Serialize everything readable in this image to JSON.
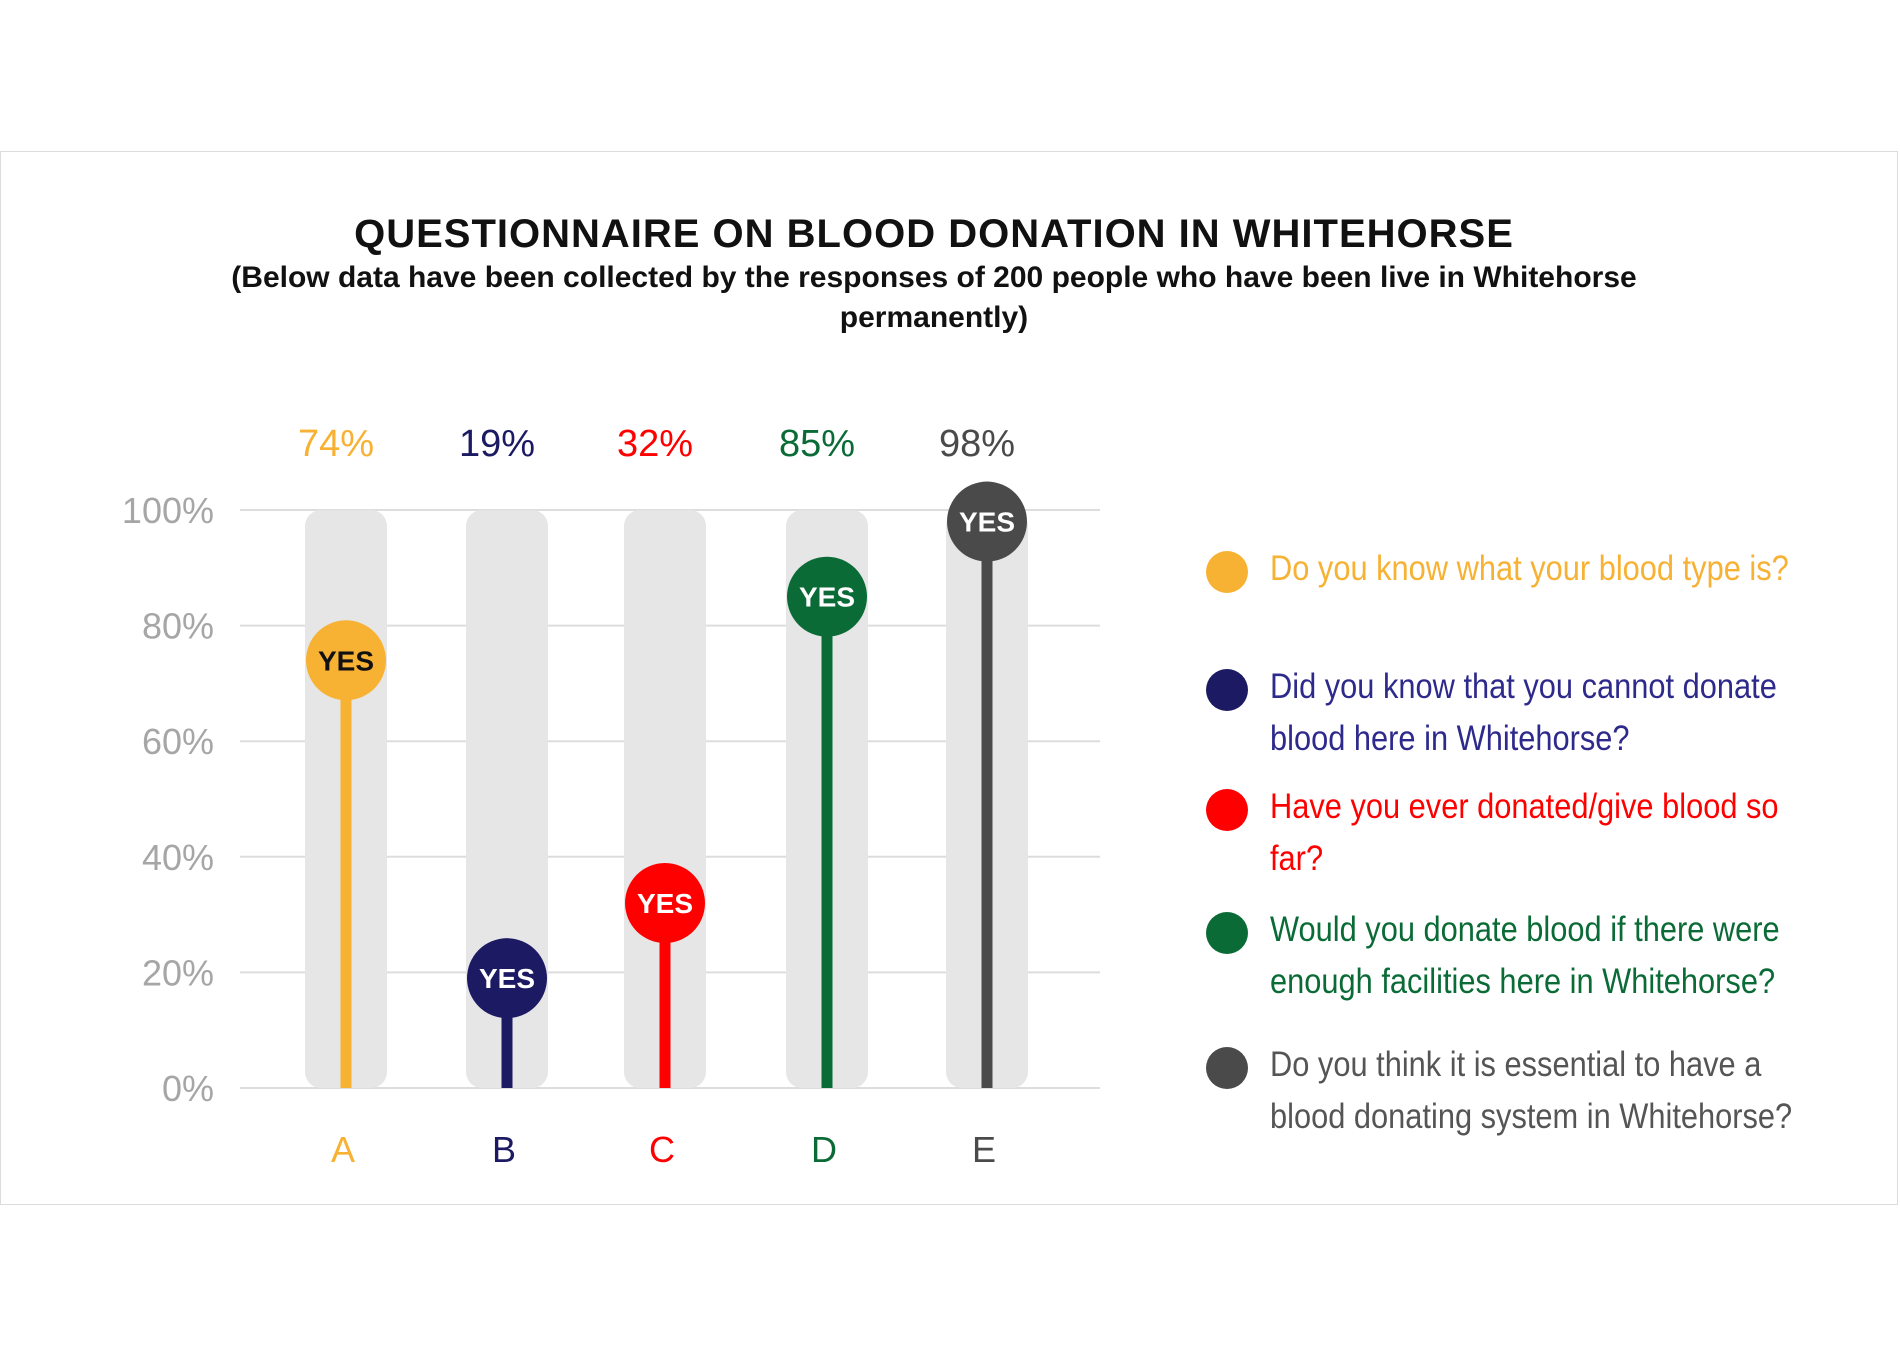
{
  "title": "QUESTIONNAIRE ON BLOOD DONATION IN WHITEHORSE",
  "subtitle": "(Below data have been collected by the responses of 200 people who have been live in Whitehorse permanently)",
  "chart_data": {
    "type": "lollipop",
    "title": "QUESTIONNAIRE ON BLOOD DONATION IN WHITEHORSE",
    "subtitle": "(Below data have been collected by the responses of 200 people who have been live in Whitehorse permanently)",
    "categories": [
      "A",
      "B",
      "C",
      "D",
      "E"
    ],
    "values": [
      74,
      19,
      32,
      85,
      98
    ],
    "value_labels": [
      "74%",
      "19%",
      "32%",
      "85%",
      "98%"
    ],
    "marker_label": "YES",
    "y_ticks": [
      "0%",
      "20%",
      "40%",
      "60%",
      "80%",
      "100%"
    ],
    "ylim": [
      0,
      100
    ],
    "grid": true,
    "legend_position": "right",
    "colors": [
      "#f7b133",
      "#1c1a63",
      "#ff0000",
      "#0b6b37",
      "#4a4a4a"
    ],
    "legend": [
      "Do you know what your blood type is?",
      "Did you know that you cannot donate blood here in Whitehorse?",
      "Have you ever donated/give blood so far?",
      "Would you donate blood if there were enough facilities here in Whitehorse?",
      "Do you think it is essential to have a blood donating system in Whitehorse?"
    ],
    "legend_colors": [
      "#f7b133",
      "#2e2a8c",
      "#ff0000",
      "#0b6b37",
      "#555555"
    ]
  }
}
